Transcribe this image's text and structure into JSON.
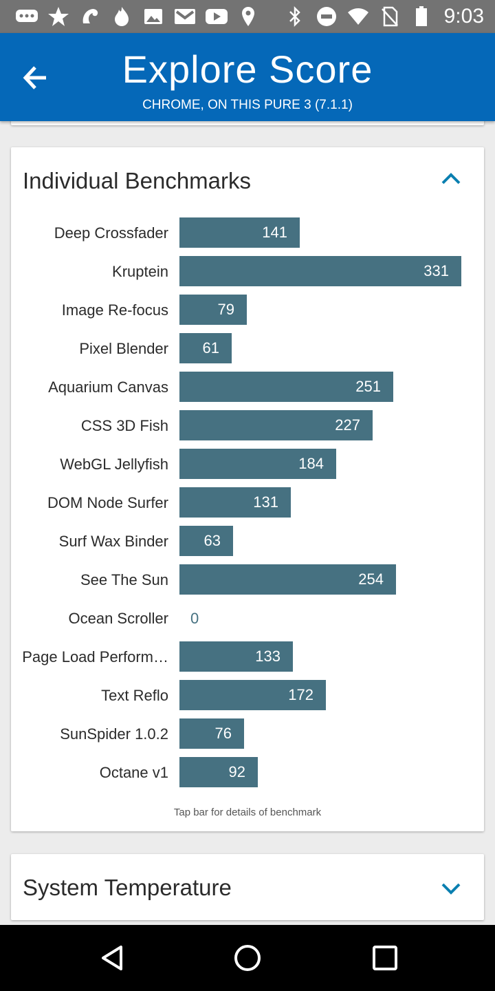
{
  "status_bar": {
    "time": "9:03",
    "left_icons": [
      "messages-icon",
      "star-badge-icon",
      "dragon-icon",
      "flame-icon",
      "image-icon",
      "gmail-icon",
      "youtube-icon",
      "location-pin-icon"
    ],
    "right_icons": [
      "bluetooth-icon",
      "do-not-disturb-icon",
      "wifi-icon",
      "no-sim-icon",
      "battery-icon"
    ]
  },
  "app_bar": {
    "title": "Explore Score",
    "subtitle": "CHROME, ON THIS PURE 3 (7.1.1)"
  },
  "benchmarks_card": {
    "title": "Individual Benchmarks",
    "footer": "Tap bar for details of benchmark"
  },
  "chart_data": {
    "type": "bar",
    "orientation": "horizontal",
    "title": "Individual Benchmarks",
    "categories": [
      "Deep Crossfader",
      "Kruptein",
      "Image Re-focus",
      "Pixel Blender",
      "Aquarium Canvas",
      "CSS 3D Fish",
      "WebGL Jellyfish",
      "DOM Node Surfer",
      "Surf Wax Binder",
      "See The Sun",
      "Ocean Scroller",
      "Page Load Perform…",
      "Text Reflo",
      "SunSpider 1.0.2",
      "Octane v1"
    ],
    "values": [
      141,
      331,
      79,
      61,
      251,
      227,
      184,
      131,
      63,
      254,
      0,
      133,
      172,
      76,
      92
    ],
    "xlim": [
      0,
      331
    ],
    "bar_color": "#467181"
  },
  "temperature_card": {
    "title": "System Temperature"
  },
  "colors": {
    "app_bar": "#0568b8",
    "bar": "#467181",
    "accent": "#0a7fb0"
  }
}
